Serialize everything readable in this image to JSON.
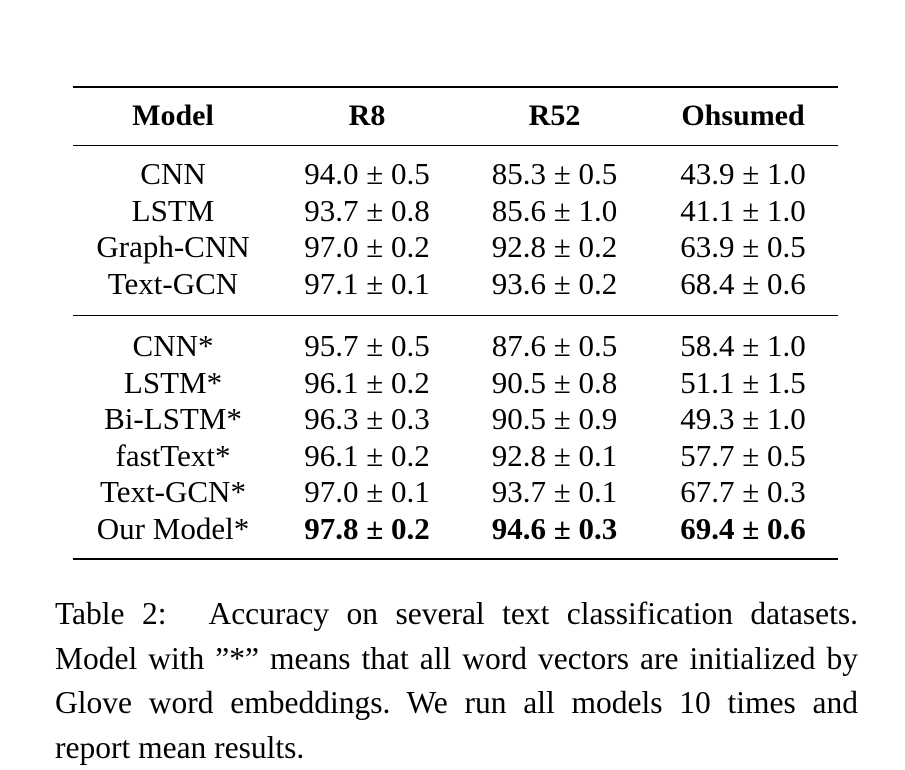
{
  "table": {
    "headers": [
      "Model",
      "R8",
      "R52",
      "Ohsumed"
    ],
    "group1": [
      {
        "model": "CNN",
        "r8": "94.0 ± 0.5",
        "r52": "85.3 ± 0.5",
        "ohsumed": "43.9 ± 1.0"
      },
      {
        "model": "LSTM",
        "r8": "93.7 ± 0.8",
        "r52": "85.6 ± 1.0",
        "ohsumed": "41.1 ± 1.0"
      },
      {
        "model": "Graph-CNN",
        "r8": "97.0 ± 0.2",
        "r52": "92.8 ± 0.2",
        "ohsumed": "63.9 ± 0.5"
      },
      {
        "model": "Text-GCN",
        "r8": "97.1 ± 0.1",
        "r52": "93.6 ± 0.2",
        "ohsumed": "68.4 ± 0.6"
      }
    ],
    "group2": [
      {
        "model": "CNN*",
        "r8": "95.7 ± 0.5",
        "r52": "87.6 ± 0.5",
        "ohsumed": "58.4 ± 1.0"
      },
      {
        "model": "LSTM*",
        "r8": "96.1 ± 0.2",
        "r52": "90.5 ± 0.8",
        "ohsumed": "51.1 ± 1.5"
      },
      {
        "model": "Bi-LSTM*",
        "r8": "96.3 ± 0.3",
        "r52": "90.5 ± 0.9",
        "ohsumed": "49.3 ± 1.0"
      },
      {
        "model": "fastText*",
        "r8": "96.1 ± 0.2",
        "r52": "92.8 ± 0.1",
        "ohsumed": "57.7 ± 0.5"
      },
      {
        "model": "Text-GCN*",
        "r8": "97.0 ± 0.1",
        "r52": "93.7 ± 0.1",
        "ohsumed": "67.7 ± 0.3"
      },
      {
        "model": "Our Model*",
        "r8": "97.8 ± 0.2",
        "r52": "94.6 ± 0.3",
        "ohsumed": "69.4 ± 0.6"
      }
    ]
  },
  "caption": {
    "label": "Table 2:",
    "text": "Accuracy on several text classification datasets. Model with ”*” means that all word vectors are initialized by Glove word embeddings. We run all models 10 times and report mean results."
  }
}
